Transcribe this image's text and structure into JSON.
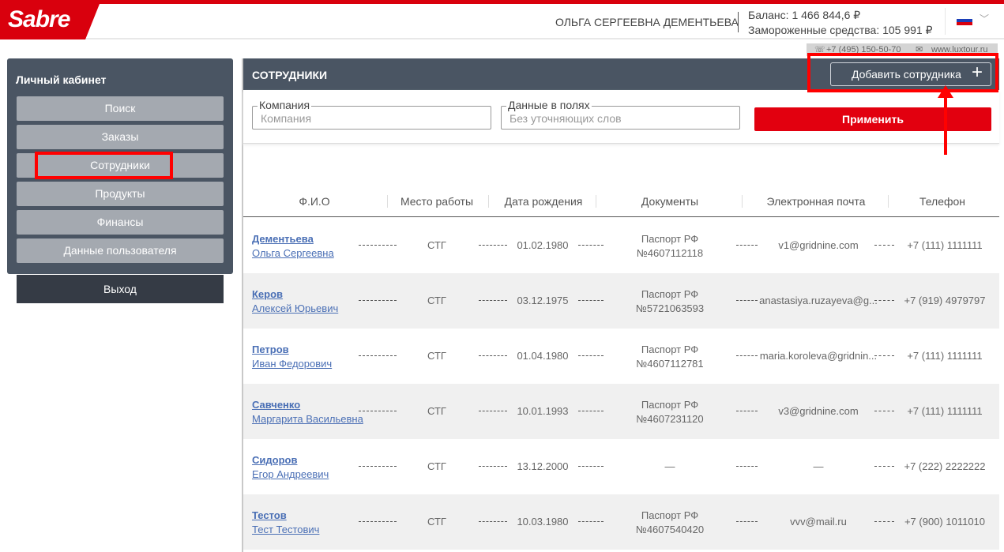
{
  "header": {
    "logo": "Sabre",
    "user_name": "ОЛЬГА СЕРГЕЕВНА ДЕМЕНТЬЕВА",
    "balance": "Баланс: 1 466 844,6 ₽",
    "frozen": "Замороженные средства: 105 991 ₽",
    "language": "ru",
    "phone": "+7 (495) 150-50-70",
    "website": "www.luxtour.ru"
  },
  "sidebar": {
    "title": "Личный кабинет",
    "items": [
      {
        "label": "Поиск"
      },
      {
        "label": "Заказы"
      },
      {
        "label": "Сотрудники",
        "active": true
      },
      {
        "label": "Продукты"
      },
      {
        "label": "Финансы"
      },
      {
        "label": "Данные пользователя"
      }
    ],
    "logout": "Выход"
  },
  "main": {
    "title": "СОТРУДНИКИ",
    "add_button": "Добавить сотрудника",
    "filters": {
      "company_label": "Компания",
      "company_placeholder": "Компания",
      "fields_label": "Данные в полях",
      "fields_placeholder": "Без уточняющих слов",
      "apply": "Применить"
    },
    "columns": [
      "Ф.И.О",
      "Место работы",
      "Дата рождения",
      "Документы",
      "Электронная почта",
      "Телефон"
    ],
    "rows": [
      {
        "last": "Дементьева",
        "first": "Ольга Сергеевна",
        "work": "СТГ",
        "dob": "01.02.1980",
        "doc1": "Паспорт РФ",
        "doc2": "№4607112118",
        "email": "v1@gridnine.com",
        "phone": "+7 (111) 1111111"
      },
      {
        "last": "Керов",
        "first": "Алексей Юрьевич",
        "work": "СТГ",
        "dob": "03.12.1975",
        "doc1": "Паспорт РФ",
        "doc2": "№5721063593",
        "email": "anastasiya.ruzayeva@g...",
        "phone": "+7 (919) 4979797"
      },
      {
        "last": "Петров",
        "first": "Иван Федорович",
        "work": "СТГ",
        "dob": "01.04.1980",
        "doc1": "Паспорт РФ",
        "doc2": "№4607112781",
        "email": "maria.koroleva@gridnin...",
        "phone": "+7 (111) 1111111"
      },
      {
        "last": "Савченко",
        "first": "Маргарита Васильевна",
        "work": "СТГ",
        "dob": "10.01.1993",
        "doc1": "Паспорт РФ",
        "doc2": "№4607231120",
        "email": "v3@gridnine.com",
        "phone": "+7 (111) 1111111"
      },
      {
        "last": "Сидоров",
        "first": "Егор Андреевич",
        "work": "СТГ",
        "dob": "13.12.2000",
        "doc1": "—",
        "doc2": "",
        "email": "—",
        "phone": "+7 (222) 2222222"
      },
      {
        "last": "Тестов",
        "first": "Тест Тестович",
        "work": "СТГ",
        "dob": "10.03.1980",
        "doc1": "Паспорт РФ",
        "doc2": "№4607540420",
        "email": "vvv@mail.ru",
        "phone": "+7 (900) 1011010"
      }
    ]
  },
  "colors": {
    "brand_red": "#d9000d",
    "panel": "#4a5563",
    "link": "#4a6fb5",
    "annotation": "#ff0000"
  }
}
